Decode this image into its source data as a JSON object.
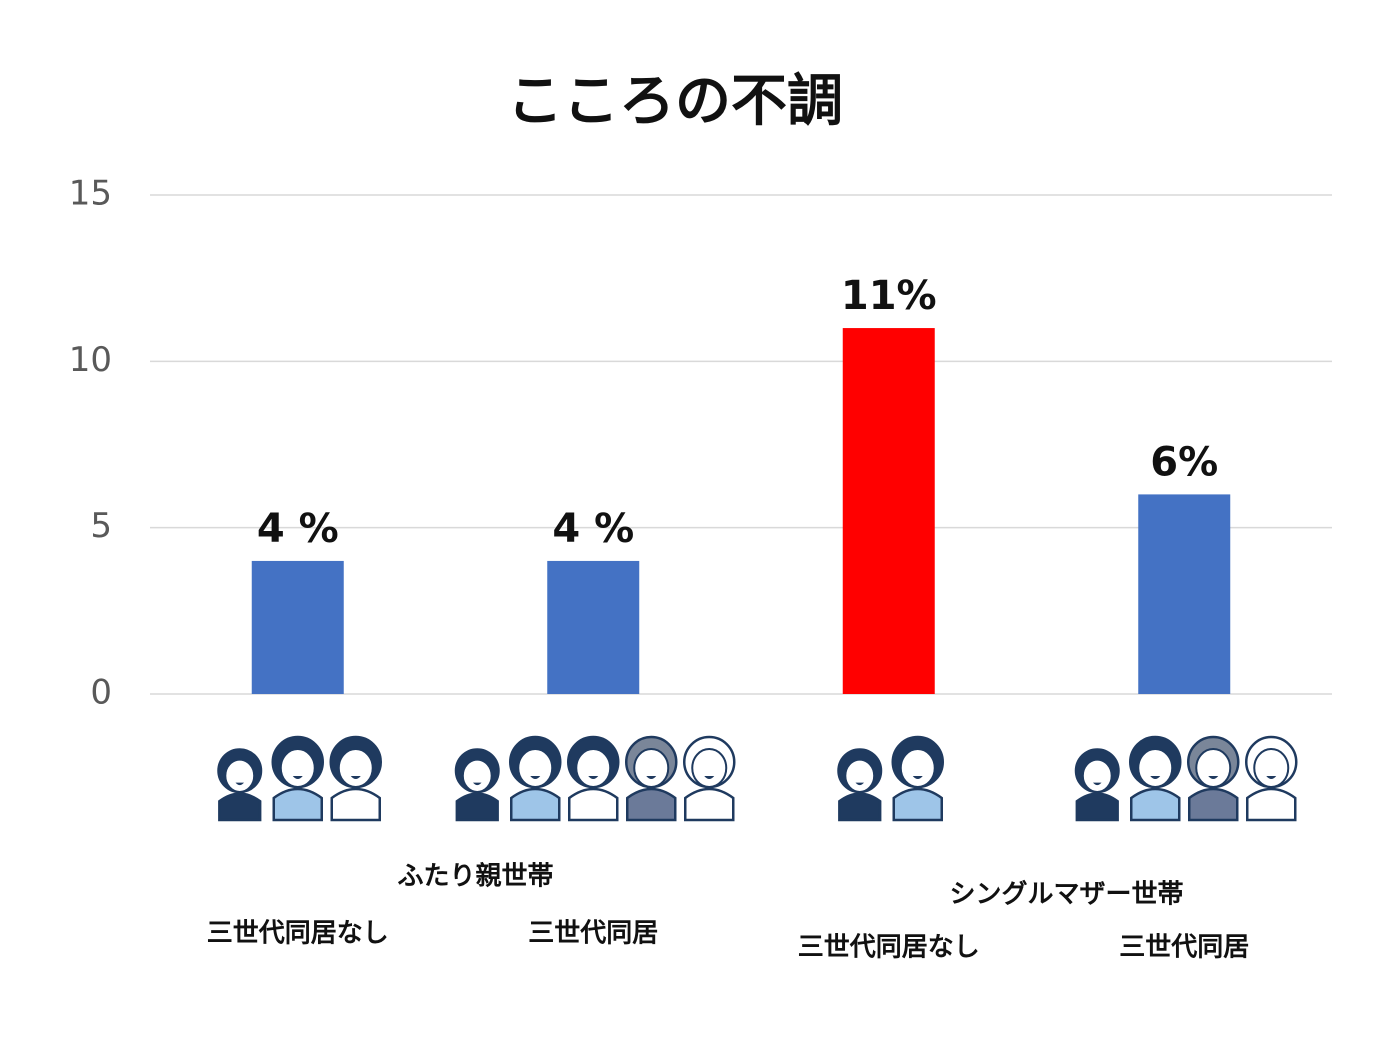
{
  "chart_data": {
    "type": "bar",
    "title": "こころの不調",
    "categories": [
      "三世代同居なし",
      "三世代同居",
      "三世代同居なし",
      "三世代同居"
    ],
    "groups": [
      "ふたり親世帯",
      "シングルマザー世帯"
    ],
    "values": [
      4,
      4,
      11,
      6
    ],
    "value_labels": [
      "4 %",
      "4 %",
      "11%",
      "6%"
    ],
    "colors": [
      "#4472c4",
      "#4472c4",
      "#ff0000",
      "#4472c4"
    ],
    "ylim": [
      0,
      15
    ],
    "yticks": [
      0,
      5,
      10,
      15
    ],
    "grid": true
  }
}
